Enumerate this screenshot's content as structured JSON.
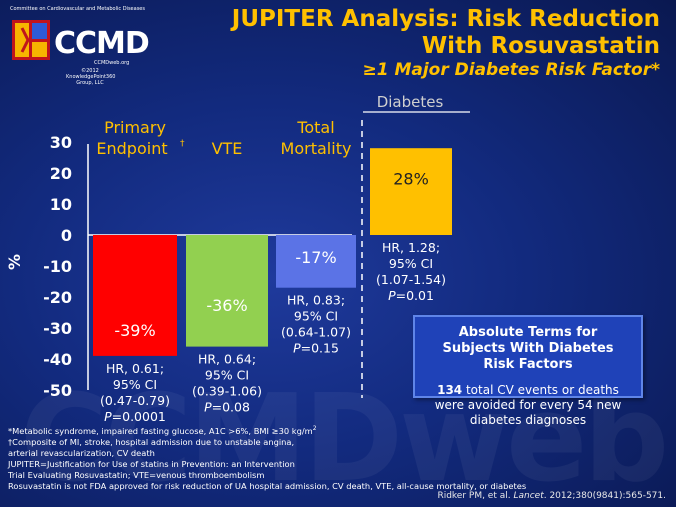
{
  "slide": {
    "title_line1": "JUPITER Analysis: Risk Reduction",
    "title_line2": "With Rosuvastatin",
    "subtitle": "≥1 Major Diabetes Risk Factor*",
    "watermark": "CCMDweb"
  },
  "logo": {
    "org_line": "Committee on Cardiovascular and Metabolic Diseases",
    "name": "CCMD",
    "url": "CCMDweb.org",
    "copyright": "©2012 KnowledgePoint360 Group, LLC"
  },
  "chart_data": {
    "type": "bar",
    "ylabel": "%",
    "ylim": [
      -50,
      30
    ],
    "yticks": [
      30,
      20,
      10,
      0,
      -10,
      -20,
      -30,
      -40,
      -50
    ],
    "group_label": "Diabetes",
    "categories": [
      {
        "label_line1": "Primary",
        "label_line2": "Endpoint",
        "label_sup": "†",
        "value": -39,
        "value_label": "-39%",
        "hr_line1": "HR, 0.61;",
        "hr_line2": "95% CI",
        "hr_line3": "(0.47-0.79)",
        "p_label": "P",
        "p_value": "=0.0001",
        "color": "#ff0000"
      },
      {
        "label_line1": "",
        "label_line2": "VTE",
        "label_sup": "",
        "value": -36,
        "value_label": "-36%",
        "hr_line1": "HR, 0.64;",
        "hr_line2": "95% CI",
        "hr_line3": "(0.39-1.06)",
        "p_label": "P",
        "p_value": "=0.08",
        "color": "#92d050"
      },
      {
        "label_line1": "Total",
        "label_line2": "Mortality",
        "label_sup": "",
        "value": -17,
        "value_label": "-17%",
        "hr_line1": "HR, 0.83;",
        "hr_line2": "95% CI",
        "hr_line3": "(0.64-1.07)",
        "p_label": "P",
        "p_value": "=0.15",
        "color": "#5b73e6"
      },
      {
        "label_line1": "",
        "label_line2": "",
        "label_sup": "",
        "value": 28,
        "value_label": "28%",
        "hr_line1": "HR, 1.28;",
        "hr_line2": "95% CI",
        "hr_line3": "(1.07-1.54)",
        "p_label": "P",
        "p_value": "=0.01",
        "color": "#ffc000"
      }
    ],
    "colors": {
      "axis": "#ffffff",
      "label": "#ffc000",
      "text": "#ffffff",
      "group_label": "#cfcfcf",
      "bar_text_dark": "#222222"
    }
  },
  "callout": {
    "heading_line1": "Absolute Terms for",
    "heading_line2": "Subjects With Diabetes",
    "heading_line3": "Risk Factors",
    "count": "134",
    "body_line1": " total CV events or deaths",
    "body_line2": "were avoided for every 54 new",
    "body_line3": "diabetes diagnoses"
  },
  "footnotes": {
    "line1": "*Metabolic syndrome, impaired fasting glucose, A1C >6%, BMI ≥30 kg/m",
    "line1_sup": "2",
    "line2": "†Composite of MI, stroke, hospital admission due to unstable angina,",
    "line3": "arterial revascularization, CV death",
    "line4": "JUPITER=Justification for Use of statins in Prevention: an Intervention",
    "line5": "Trial Evaluating Rosuvastatin; VTE=venous thromboembolism",
    "line6": "Rosuvastatin is not FDA approved for risk reduction of UA hospital admission, CV death, VTE, all-cause mortality, or diabetes"
  },
  "citation": {
    "pre": "Ridker PM, et al. ",
    "journal": "Lancet",
    "post": ". 2012;380(9841):565-571."
  }
}
